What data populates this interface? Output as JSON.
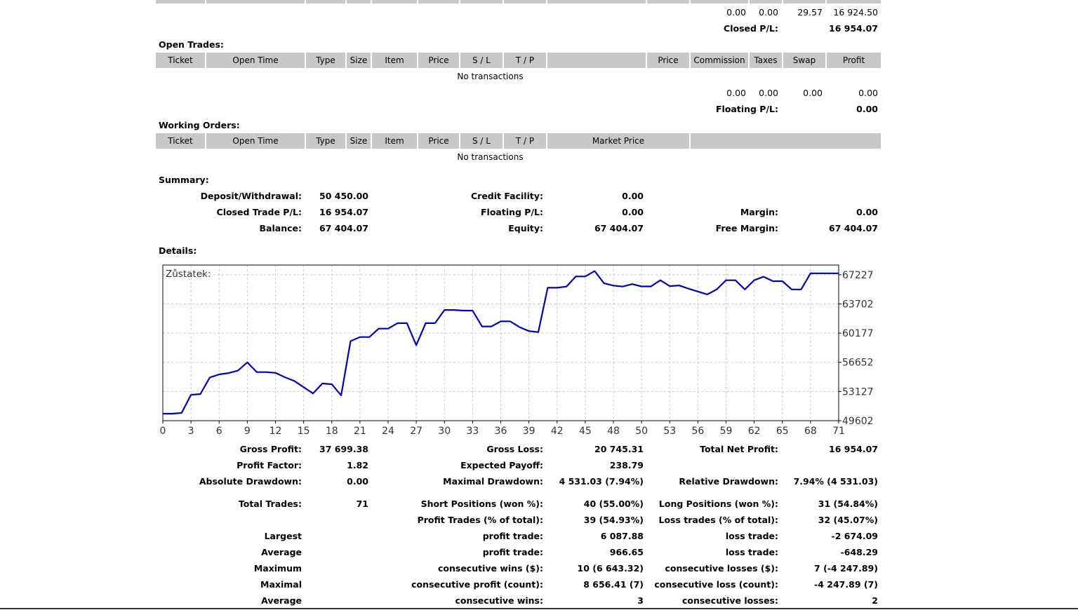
{
  "top_totals": {
    "values": [
      "0.00",
      "0.00",
      "29.57",
      "16 924.50"
    ],
    "label": "Closed P/L:",
    "value": "16 954.07"
  },
  "open_trades": {
    "title": "Open Trades:",
    "headers": [
      "Ticket",
      "Open Time",
      "Type",
      "Size",
      "Item",
      "Price",
      "S / L",
      "T / P",
      "",
      "Price",
      "Commission",
      "Taxes",
      "Swap",
      "Profit"
    ],
    "empty_text": "No transactions",
    "totals": [
      "0.00",
      "0.00",
      "0.00",
      "0.00"
    ],
    "label": "Floating P/L:",
    "value": "0.00"
  },
  "working_orders": {
    "title": "Working Orders:",
    "headers": [
      "Ticket",
      "Open Time",
      "Type",
      "Size",
      "Item",
      "Price",
      "S / L",
      "T / P",
      "Market Price",
      ""
    ],
    "empty_text": "No transactions"
  },
  "summary": {
    "title": "Summary:",
    "rows": [
      {
        "l1": "Deposit/Withdrawal:",
        "v1": "50 450.00",
        "l2": "Credit Facility:",
        "v2": "0.00",
        "l3": "",
        "v3": ""
      },
      {
        "l1": "Closed Trade P/L:",
        "v1": "16 954.07",
        "l2": "Floating P/L:",
        "v2": "0.00",
        "l3": "Margin:",
        "v3": "0.00"
      },
      {
        "l1": "Balance:",
        "v1": "67 404.07",
        "l2": "Equity:",
        "v2": "67 404.07",
        "l3": "Free Margin:",
        "v3": "67 404.07"
      }
    ]
  },
  "details": {
    "title": "Details:",
    "rows": [
      {
        "l1": "Gross Profit:",
        "v1": "37 699.38",
        "l2": "Gross Loss:",
        "v2": "20 745.31",
        "l3": "Total Net Profit:",
        "v3": "16 954.07"
      },
      {
        "l1": "Profit Factor:",
        "v1": "1.82",
        "l2": "Expected Payoff:",
        "v2": "238.79",
        "l3": "",
        "v3": ""
      },
      {
        "l1": "Absolute Drawdown:",
        "v1": "0.00",
        "l2": "Maximal Drawdown:",
        "v2": "4 531.03 (7.94%)",
        "l3": "Relative Drawdown:",
        "v3": "7.94% (4 531.03)"
      },
      {
        "l1": "Total Trades:",
        "v1": "71",
        "l2": "Short Positions (won %):",
        "v2": "40 (55.00%)",
        "l3": "Long Positions (won %):",
        "v3": "31 (54.84%)"
      },
      {
        "l1": "",
        "v1": "",
        "l2": "Profit Trades (% of total):",
        "v2": "39 (54.93%)",
        "l3": "Loss trades (% of total):",
        "v3": "32 (45.07%)"
      },
      {
        "l1": "Largest",
        "v1": "",
        "l2": "profit trade:",
        "v2": "6 087.88",
        "l3": "loss trade:",
        "v3": "-2 674.09"
      },
      {
        "l1": "Average",
        "v1": "",
        "l2": "profit trade:",
        "v2": "966.65",
        "l3": "loss trade:",
        "v3": "-648.29"
      },
      {
        "l1": "Maximum",
        "v1": "",
        "l2": "consecutive wins ($):",
        "v2": "10 (6 643.32)",
        "l3": "consecutive losses ($):",
        "v3": "7 (-4 247.89)"
      },
      {
        "l1": "Maximal",
        "v1": "",
        "l2": "consecutive profit (count):",
        "v2": "8 656.41 (7)",
        "l3": "consecutive loss (count):",
        "v3": "-4 247.89 (7)"
      },
      {
        "l1": "Average",
        "v1": "",
        "l2": "consecutive wins:",
        "v2": "3",
        "l3": "consecutive losses:",
        "v3": "2"
      }
    ]
  },
  "chart_data": {
    "type": "line",
    "title": "Zůstatek:",
    "xlabel": "",
    "ylabel": "",
    "xlim": [
      0,
      72
    ],
    "ylim": [
      49602,
      68400
    ],
    "x_ticks": [
      0,
      3,
      6,
      9,
      12,
      15,
      18,
      21,
      24,
      27,
      30,
      33,
      36,
      39,
      42,
      45,
      48,
      51,
      54,
      57,
      60,
      63,
      66,
      69,
      72
    ],
    "x_tick_labels": [
      "0",
      "3",
      "6",
      "9",
      "12",
      "15",
      "18",
      "21",
      "24",
      "27",
      "30",
      "33",
      "36",
      "39",
      "42",
      "45",
      "48",
      "50",
      "53",
      "56",
      "59",
      "62",
      "65",
      "68",
      "71"
    ],
    "y_ticks": [
      49602,
      53127,
      56652,
      60177,
      63702,
      67227
    ],
    "grid": true,
    "line_color": "#0000aa",
    "series": [
      {
        "name": "",
        "x": [
          0,
          1,
          2,
          3,
          4,
          5,
          6,
          7,
          8,
          9,
          10,
          11,
          12,
          13,
          14,
          15,
          16,
          17,
          18,
          19,
          20,
          21,
          22,
          23,
          24,
          25,
          26,
          27,
          28,
          29,
          30,
          31,
          32,
          33,
          34,
          35,
          36,
          37,
          38,
          39,
          40,
          41,
          42,
          43,
          44,
          45,
          46,
          47,
          48,
          49,
          50,
          51,
          52,
          53,
          54,
          55,
          56,
          57,
          58,
          59,
          60,
          61,
          62,
          63,
          64,
          65,
          66,
          67,
          68,
          69,
          70,
          71,
          72
        ],
        "values": [
          50450,
          50450,
          50540,
          52730,
          52820,
          54820,
          55190,
          55350,
          55650,
          56650,
          55470,
          55470,
          55380,
          54850,
          54400,
          53650,
          52900,
          54100,
          54000,
          52660,
          59210,
          59700,
          59700,
          60720,
          60720,
          61380,
          61380,
          58720,
          61380,
          61380,
          62970,
          62970,
          62900,
          62900,
          60980,
          60980,
          61600,
          61600,
          60900,
          60420,
          60300,
          65660,
          65660,
          65800,
          67020,
          67020,
          67670,
          66200,
          65920,
          65800,
          66100,
          65820,
          65820,
          66560,
          65850,
          65940,
          65550,
          65200,
          64850,
          65450,
          66560,
          66560,
          65450,
          66560,
          66990,
          66450,
          66450,
          65450,
          65450,
          67404,
          67404,
          67404,
          67404
        ]
      }
    ]
  }
}
